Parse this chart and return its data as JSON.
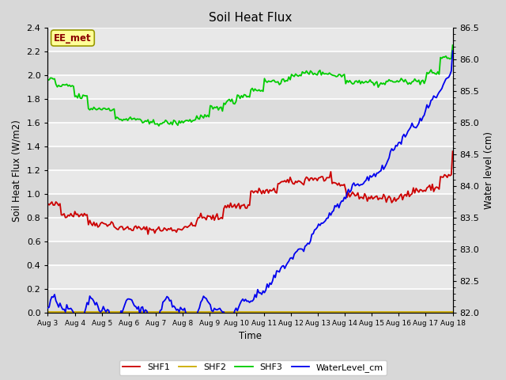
{
  "title": "Soil Heat Flux",
  "ylabel_left": "Soil Heat Flux (W/m2)",
  "ylabel_right": "Water level (cm)",
  "xlabel": "Time",
  "annotation": "EE_met",
  "annotation_color": "#8B0000",
  "annotation_bg": "#FFFF99",
  "background_color": "#E0E0E0",
  "ylim_left": [
    0.0,
    2.4
  ],
  "ylim_right": [
    82.0,
    86.5
  ],
  "xlim": [
    0,
    15
  ],
  "x_tick_labels": [
    "Aug 3",
    "Aug 4",
    "Aug 5",
    "Aug 6",
    "Aug 7",
    "Aug 8",
    "Aug 9",
    "Aug 10",
    "Aug 11",
    "Aug 12",
    "Aug 13",
    "Aug 14",
    "Aug 15",
    "Aug 16",
    "Aug 17",
    "Aug 18"
  ],
  "yticks_left": [
    0.0,
    0.2,
    0.4,
    0.6,
    0.8,
    1.0,
    1.2,
    1.4,
    1.6,
    1.8,
    2.0,
    2.2,
    2.4
  ],
  "yticks_right": [
    82.0,
    82.5,
    83.0,
    83.5,
    84.0,
    84.5,
    85.0,
    85.5,
    86.0,
    86.5
  ],
  "colors": {
    "SHF1": "#CC0000",
    "SHF2": "#CCAA00",
    "SHF3": "#00CC00",
    "WaterLevel_cm": "#0000EE"
  },
  "legend_labels": [
    "SHF1",
    "SHF2",
    "SHF3",
    "WaterLevel_cm"
  ]
}
